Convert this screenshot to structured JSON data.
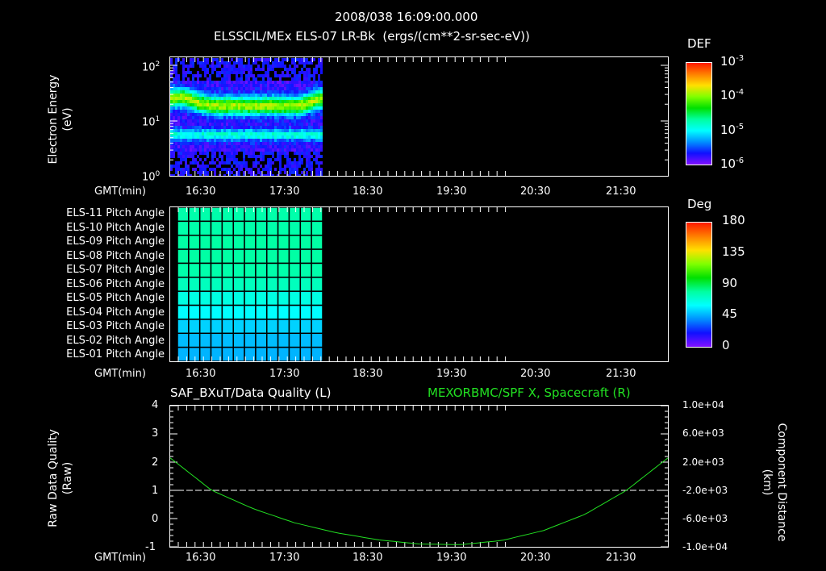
{
  "header": {
    "datetime": "2008/038 16:09:00.000",
    "subtitle": "ELSSCIL/MEx ELS-07 LR-Bk  (ergs/(cm**2-sr-sec-eV))"
  },
  "time_axis": {
    "label": "GMT(min)",
    "ticks": [
      "16:30",
      "17:30",
      "18:30",
      "19:30",
      "20:30",
      "21:30"
    ]
  },
  "panel1": {
    "ylabel_line1": "Electron Energy",
    "ylabel_line2": "(eV)",
    "yticks": [
      "10",
      "10",
      "10"
    ],
    "yexps": [
      "2",
      "1",
      "0"
    ],
    "colorbar": {
      "title": "DEF",
      "labels": [
        "10",
        "10",
        "10",
        "10"
      ],
      "exps": [
        "-3",
        "-4",
        "-5",
        "-6"
      ]
    }
  },
  "panel2": {
    "rows": [
      "ELS-11 Pitch Angle",
      "ELS-10 Pitch Angle",
      "ELS-09 Pitch Angle",
      "ELS-08 Pitch Angle",
      "ELS-07 Pitch Angle",
      "ELS-06 Pitch Angle",
      "ELS-05 Pitch Angle",
      "ELS-04 Pitch Angle",
      "ELS-03 Pitch Angle",
      "ELS-02 Pitch Angle",
      "ELS-01 Pitch Angle"
    ],
    "colorbar": {
      "title": "Deg",
      "labels": [
        "180",
        "135",
        "90",
        "45",
        "0"
      ]
    }
  },
  "panel3": {
    "left_title": "SAF_BXuT/Data Quality (L)",
    "right_title": "MEXORBMC/SPF X, Spacecraft (R)",
    "ylabel_left_line1": "Raw Data Quality",
    "ylabel_left_line2": "(Raw)",
    "ylabel_right_line1": "Component Distance",
    "ylabel_right_line2": "(km)",
    "yticks_left": [
      "4",
      "3",
      "2",
      "1",
      "0",
      "-1"
    ],
    "yticks_right": [
      "1.0e+04",
      "6.0e+03",
      "2.0e+03",
      "-2.0e+03",
      "-6.0e+03",
      "-1.0e+04"
    ],
    "series_color": "#22e022"
  },
  "chart_data": [
    {
      "type": "heatmap",
      "title": "ELSSCIL/MEx ELS-07 LR-Bk (ergs/(cm**2-sr-sec-eV))",
      "xlabel": "GMT(min)",
      "ylabel": "Electron Energy (eV)",
      "yscale": "log",
      "ylim": [
        1,
        150
      ],
      "x_ticks": [
        "16:30",
        "17:30",
        "18:30",
        "19:30",
        "20:30",
        "21:30"
      ],
      "data_time_range": [
        "16:09",
        "17:59"
      ],
      "colorbar": {
        "label": "DEF",
        "scale": "log",
        "range": [
          1e-06,
          0.001
        ]
      },
      "description": "Main enhanced band (~1e-4) between ~12-40 eV, secondary weaker band at ~5-7 eV, sparse noise above 50 eV and below 3 eV; data only from 16:09 to ~18:00"
    },
    {
      "type": "heatmap",
      "title": "ELS Pitch Angle",
      "xlabel": "GMT(min)",
      "categories": [
        "ELS-11",
        "ELS-10",
        "ELS-09",
        "ELS-08",
        "ELS-07",
        "ELS-06",
        "ELS-05",
        "ELS-04",
        "ELS-03",
        "ELS-02",
        "ELS-01"
      ],
      "values_deg_approx": [
        95,
        95,
        97,
        97,
        95,
        90,
        80,
        72,
        62,
        57,
        55
      ],
      "colorbar": {
        "label": "Deg",
        "range": [
          0,
          180
        ],
        "ticks": [
          0,
          45,
          90,
          135,
          180
        ]
      },
      "data_time_range": [
        "16:09",
        "17:59"
      ]
    },
    {
      "type": "line",
      "title_left": "SAF_BXuT/Data Quality (L)",
      "title_right": "MEXORBMC/SPF X, Spacecraft (R)",
      "xlabel": "GMT(min)",
      "ylabel_left": "Raw Data Quality (Raw)",
      "ylabel_right": "Component Distance (km)",
      "ylim_left": [
        -1,
        4
      ],
      "ylim_right": [
        -10000,
        10000
      ],
      "x": [
        "16:09",
        "16:30",
        "17:00",
        "17:30",
        "18:00",
        "18:30",
        "19:00",
        "19:30",
        "20:00",
        "20:30",
        "21:00",
        "21:30",
        "21:59"
      ],
      "series": [
        {
          "name": "Data Quality (L)",
          "axis": "left",
          "style": "dashed white",
          "values": [
            1,
            1,
            1,
            1,
            1,
            1,
            1,
            1,
            1,
            1,
            1,
            1,
            1
          ]
        },
        {
          "name": "SPF X Spacecraft (R)",
          "axis": "right",
          "color": "#22e022",
          "values": [
            2600,
            -2000,
            -4600,
            -6600,
            -8000,
            -9000,
            -9600,
            -9700,
            -9100,
            -7700,
            -5400,
            -2000,
            2600
          ]
        }
      ]
    }
  ]
}
